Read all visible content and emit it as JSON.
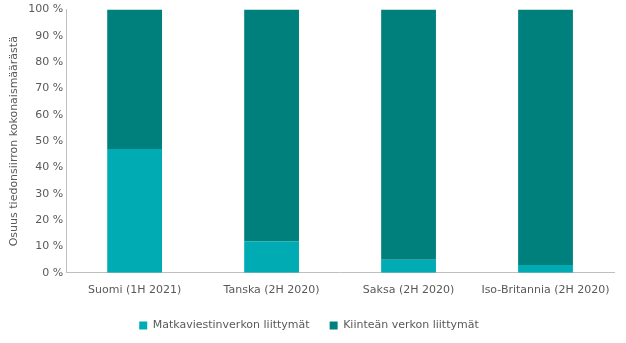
{
  "chart_data": {
    "type": "bar",
    "y_label": "Osuus tiedonsiirron kokonaismäärästä",
    "categories": [
      "Suomi (1H 2021)",
      "Tanska (2H 2020)",
      "Saksa (2H 2020)",
      "Iso-Britannia (2H 2020)"
    ],
    "series": [
      {
        "name": "Matkaviestinverkon liittymät",
        "color": "#00abb3",
        "values": [
          47,
          12,
          5,
          3
        ]
      },
      {
        "name": "Kiinteän verkon liittymät",
        "color": "#00807d",
        "values": [
          53,
          88,
          95,
          97
        ]
      }
    ],
    "stacked": true,
    "ylim": [
      0,
      100
    ],
    "yticks": [
      {
        "value": 0,
        "label": "0 %"
      },
      {
        "value": 10,
        "label": "10 %"
      },
      {
        "value": 20,
        "label": "20 %"
      },
      {
        "value": 30,
        "label": "30 %"
      },
      {
        "value": 40,
        "label": "40 %"
      },
      {
        "value": 50,
        "label": "50 %"
      },
      {
        "value": 60,
        "label": "60 %"
      },
      {
        "value": 70,
        "label": "70 %"
      },
      {
        "value": 80,
        "label": "80 %"
      },
      {
        "value": 90,
        "label": "90 %"
      },
      {
        "value": 100,
        "label": "100 %"
      }
    ],
    "grid": false,
    "legend": "bottom"
  }
}
